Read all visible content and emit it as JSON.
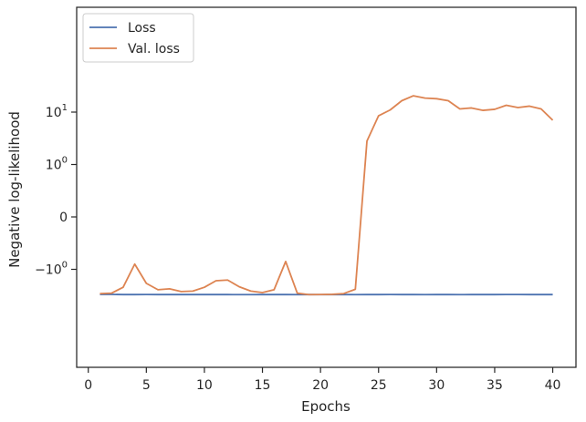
{
  "chart_data": {
    "type": "line",
    "xlabel": "Epochs",
    "ylabel": "Negative log-likelihood",
    "yscale": "symlog",
    "xlim": [
      -1,
      42
    ],
    "x_ticks": [
      0,
      5,
      10,
      15,
      20,
      25,
      30,
      35,
      40
    ],
    "y_ticks": [
      {
        "value": 10,
        "base": "10",
        "exp": "1"
      },
      {
        "value": 1,
        "base": "10",
        "exp": "0"
      },
      {
        "value": 0,
        "base": "0",
        "exp": ""
      },
      {
        "value": -1,
        "base": "−10",
        "exp": "0"
      }
    ],
    "grid": false,
    "legend_position": "top-left",
    "x": [
      1,
      2,
      3,
      4,
      5,
      6,
      7,
      8,
      9,
      10,
      11,
      12,
      13,
      14,
      15,
      16,
      17,
      18,
      19,
      20,
      21,
      22,
      23,
      24,
      25,
      26,
      27,
      28,
      29,
      30,
      31,
      32,
      33,
      34,
      35,
      36,
      37,
      38,
      39,
      40
    ],
    "series": [
      {
        "name": "Loss",
        "color": "#4c72b0",
        "values": [
          -3.0,
          -3.01,
          -3.03,
          -3.03,
          -3.02,
          -3.03,
          -3.03,
          -3.03,
          -3.03,
          -3.03,
          -3.03,
          -3.03,
          -3.04,
          -3.04,
          -3.03,
          -3.03,
          -3.03,
          -3.04,
          -3.03,
          -3.04,
          -3.03,
          -3.03,
          -3.04,
          -3.03,
          -3.03,
          -3.02,
          -3.03,
          -3.03,
          -3.04,
          -3.03,
          -3.03,
          -3.04,
          -3.03,
          -3.03,
          -3.03,
          -3.02,
          -3.02,
          -3.03,
          -3.03,
          -3.03
        ]
      },
      {
        "name": "Val. loss",
        "color": "#dd8452",
        "values": [
          -2.9,
          -2.85,
          -2.2,
          -0.9,
          -1.85,
          -2.45,
          -2.35,
          -2.65,
          -2.6,
          -2.2,
          -1.65,
          -1.6,
          -2.15,
          -2.6,
          -2.78,
          -2.45,
          -0.85,
          -2.85,
          -3.04,
          -3.02,
          -3.0,
          -2.9,
          -2.4,
          2.8,
          8.5,
          11.0,
          16.5,
          20.5,
          18.5,
          18.0,
          16.5,
          11.5,
          12.0,
          10.8,
          11.3,
          13.5,
          12.2,
          13.0,
          11.5,
          7.0
        ]
      }
    ]
  }
}
